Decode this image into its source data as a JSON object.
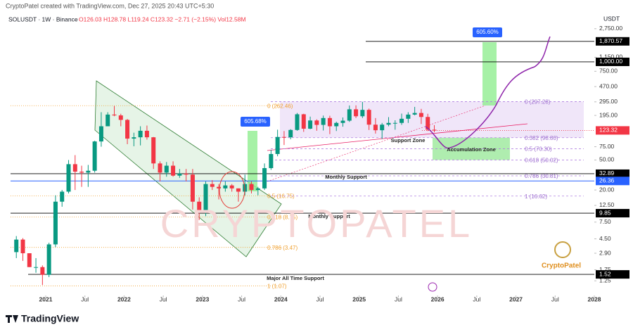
{
  "header": {
    "created": "CryptoPatel created with TradingView.com, Dec 27, 2025 20:43 UTC+5:30",
    "symbol": "SOLUSDT · 1W · Binance",
    "ohlc": "O126.03 H128.78 L119.24 C123.32 −2.71 (−2.15%) Vol12.58M",
    "currency": "USDT",
    "footer": "TradingView",
    "watermark": "CRYPTOPATEL",
    "logo": "CryptoPatel"
  },
  "chart_data": {
    "type": "candlestick",
    "log_scale": true,
    "up_color": "#089981",
    "down_color": "#f23645",
    "x": [
      "2020-08",
      "2020-09",
      "2020-10",
      "2020-11",
      "2020-12",
      "2021-01",
      "2021-02",
      "2021-03",
      "2021-04",
      "2021-05",
      "2021-06",
      "2021-07",
      "2021-08",
      "2021-09",
      "2021-10",
      "2021-11",
      "2021-12",
      "2022-01",
      "2022-02",
      "2022-03",
      "2022-04",
      "2022-05",
      "2022-06",
      "2022-07",
      "2022-08",
      "2022-09",
      "2022-10",
      "2022-11",
      "2022-12",
      "2023-01",
      "2023-02",
      "2023-03",
      "2023-04",
      "2023-05",
      "2023-06",
      "2023-07",
      "2023-08",
      "2023-09",
      "2023-10",
      "2023-11",
      "2023-12",
      "2024-01",
      "2024-02",
      "2024-03",
      "2024-04",
      "2024-05",
      "2024-06",
      "2024-07",
      "2024-08",
      "2024-09",
      "2024-10",
      "2024-11",
      "2024-12",
      "2025-01",
      "2025-02",
      "2025-03",
      "2025-04",
      "2025-05",
      "2025-06",
      "2025-07",
      "2025-08",
      "2025-09",
      "2025-10",
      "2025-11",
      "2025-12"
    ],
    "open": [
      3.0,
      4.4,
      2.9,
      1.9,
      1.9,
      1.5,
      3.8,
      14,
      19,
      44,
      35,
      34,
      36,
      88,
      140,
      200,
      195,
      170,
      96,
      100,
      122,
      100,
      45,
      34,
      42,
      31,
      33,
      32,
      14,
      10,
      24,
      22,
      21,
      23,
      21,
      19,
      24,
      20,
      21,
      39,
      60,
      101,
      100,
      125,
      202,
      130,
      167,
      146,
      180,
      140,
      155,
      166,
      235,
      190,
      231,
      147,
      124,
      147,
      155,
      155,
      176,
      200,
      210,
      186,
      126
    ],
    "high": [
      4.9,
      4.6,
      2.9,
      2.5,
      2.0,
      4.0,
      17,
      20,
      50,
      58,
      42,
      43,
      90,
      215,
      215,
      260,
      205,
      175,
      115,
      140,
      143,
      101,
      48,
      47,
      48,
      38,
      38,
      38,
      16,
      26,
      27,
      24,
      26,
      24,
      21,
      32,
      26,
      22,
      45,
      68,
      126,
      121,
      128,
      210,
      205,
      188,
      173,
      194,
      193,
      161,
      183,
      264,
      265,
      295,
      240,
      180,
      155,
      185,
      168,
      206,
      215,
      253,
      238,
      205,
      145
    ],
    "low": [
      2.5,
      2.3,
      1.9,
      1.6,
      1.1,
      1.4,
      3.5,
      12,
      18,
      20,
      22,
      22,
      34,
      75,
      140,
      190,
      140,
      81,
      76,
      78,
      93,
      38,
      26,
      30,
      30,
      29,
      26,
      11,
      8,
      9,
      20,
      15,
      19,
      19,
      14,
      17,
      18,
      17,
      20,
      37,
      56,
      79,
      94,
      122,
      118,
      128,
      122,
      123,
      110,
      121,
      138,
      160,
      180,
      180,
      125,
      112,
      95,
      140,
      126,
      146,
      155,
      195,
      150,
      121,
      117
    ],
    "close": [
      4.4,
      2.9,
      1.9,
      1.9,
      1.5,
      3.8,
      14,
      19,
      44,
      35,
      34,
      36,
      88,
      140,
      200,
      195,
      170,
      96,
      100,
      122,
      100,
      45,
      34,
      42,
      31,
      33,
      32,
      14,
      10,
      24,
      22,
      21,
      23,
      21,
      19,
      24,
      20,
      21,
      39,
      60,
      101,
      100,
      125,
      202,
      130,
      167,
      146,
      180,
      140,
      155,
      166,
      235,
      190,
      231,
      147,
      124,
      147,
      155,
      155,
      176,
      200,
      210,
      186,
      126,
      123.32
    ],
    "xlim": [
      "2020-06",
      "2028-01"
    ],
    "xticks": [
      {
        "value": "2021-01",
        "label": "2021"
      },
      {
        "value": "2021-07",
        "label": "Jul"
      },
      {
        "value": "2022-01",
        "label": "2022"
      },
      {
        "value": "2022-07",
        "label": "Jul"
      },
      {
        "value": "2023-01",
        "label": "2023"
      },
      {
        "value": "2023-07",
        "label": "Jul"
      },
      {
        "value": "2024-01",
        "label": "2024"
      },
      {
        "value": "2024-07",
        "label": "Jul"
      },
      {
        "value": "2025-01",
        "label": "2025"
      },
      {
        "value": "2025-07",
        "label": "Jul"
      },
      {
        "value": "2026-01",
        "label": "2026"
      },
      {
        "value": "2026-07",
        "label": "Jul"
      },
      {
        "value": "2027-01",
        "label": "2027"
      },
      {
        "value": "2027-07",
        "label": "Jul"
      },
      {
        "value": "2028-01",
        "label": "2028"
      }
    ],
    "ylim": [
      0.8,
      2800
    ],
    "yticks": [
      {
        "value": 2750,
        "label": "2,750.00"
      },
      {
        "value": 1150,
        "label": "1,150.00"
      },
      {
        "value": 750,
        "label": "750.00"
      },
      {
        "value": 470,
        "label": "470.00"
      },
      {
        "value": 295,
        "label": "295.00"
      },
      {
        "value": 195,
        "label": "195.00"
      },
      {
        "value": 75,
        "label": "75.00"
      },
      {
        "value": 50,
        "label": "50.00"
      },
      {
        "value": 20,
        "label": "20.00"
      },
      {
        "value": 12.5,
        "label": "12.50"
      },
      {
        "value": 7.5,
        "label": "7.50"
      },
      {
        "value": 4.5,
        "label": "4.50"
      },
      {
        "value": 2.9,
        "label": "2.90"
      },
      {
        "value": 1.75,
        "label": "1.75"
      },
      {
        "value": 1.25,
        "label": "1.25"
      }
    ],
    "price_lines": [
      {
        "value": 1870.57,
        "label": "1,870.57",
        "color": "#000000"
      },
      {
        "value": 1000,
        "label": "1,000.00",
        "color": "#000000"
      },
      {
        "value": 123.32,
        "label": "123.32",
        "color": "#f23645"
      },
      {
        "value": 32.89,
        "label": "32.89",
        "color": "#000000"
      },
      {
        "value": 26.36,
        "label": "26.36",
        "color": "#2962ff"
      },
      {
        "value": 9.85,
        "label": "9.85",
        "color": "#000000"
      },
      {
        "value": 1.52,
        "label": "1.52",
        "color": "#000000"
      }
    ],
    "fib_orange": [
      {
        "value": 262.46,
        "label": "0 (262.46)"
      },
      {
        "value": 16.75,
        "label": "0.5 (16.75)"
      },
      {
        "value": 8.75,
        "label": "0.618 (8.75)"
      },
      {
        "value": 3.47,
        "label": "0.786 (3.47)"
      },
      {
        "value": 1.07,
        "label": "1 (1.07)"
      }
    ],
    "fib_purple": [
      {
        "value": 297.28,
        "label": "0 (297.28)"
      },
      {
        "value": 98.8,
        "label": "0.382 (98.80)"
      },
      {
        "value": 70.3,
        "label": "0.5 (70.30)"
      },
      {
        "value": 50.02,
        "label": "0.618 (50.02)"
      },
      {
        "value": 30.81,
        "label": "0.786 (30.81)"
      },
      {
        "value": 16.62,
        "label": "1 (16.62)"
      }
    ],
    "gain_labels": [
      "605.68%",
      "605.60%"
    ],
    "annotations": [
      "Support Zone",
      "Accumulation Zone",
      "Monthly Support",
      "Monthly Support",
      "Major All Time Support"
    ]
  }
}
